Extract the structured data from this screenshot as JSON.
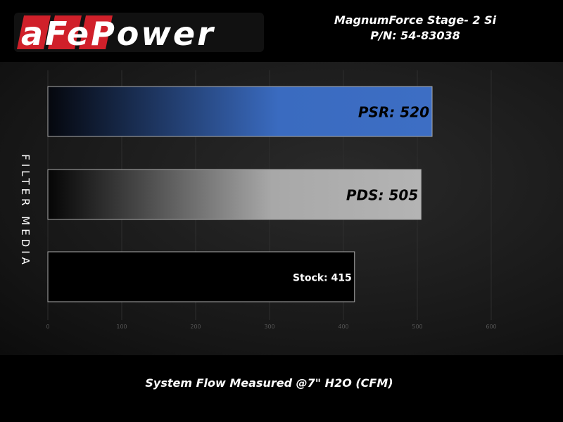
{
  "header": {
    "logo_text": "aFePower",
    "title": "MagnumForce Stage- 2 Si",
    "part_number": "P/N: 54-83038"
  },
  "chart_data": {
    "type": "bar",
    "orientation": "horizontal",
    "categories": [
      "PSR",
      "PDS",
      "Stock"
    ],
    "values": [
      520,
      505,
      415
    ],
    "data_labels": [
      "PSR: 520",
      "PDS: 505",
      "Stock: 415"
    ],
    "bar_colors": [
      "#3a6bc0",
      "#b0b0b0",
      "#000000"
    ],
    "xlabel": "System Flow Measured @7\" H2O (CFM)",
    "ylabel": "FILTER MEDIA",
    "xlim": [
      0,
      600
    ],
    "xticks": [
      0,
      100,
      200,
      300,
      400,
      500,
      600
    ],
    "grid": true
  }
}
